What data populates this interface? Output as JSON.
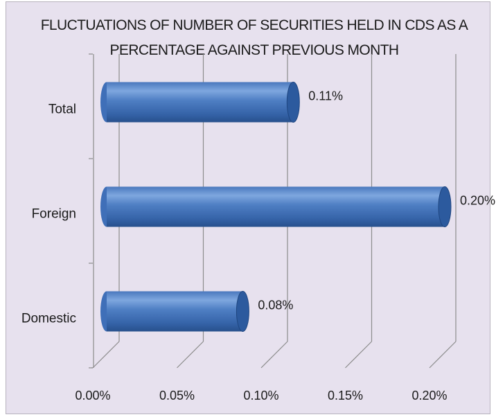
{
  "chart_data": {
    "type": "bar",
    "orientation": "horizontal",
    "style": "3d-cylinder",
    "title": "FLUCTUATIONS OF  NUMBER  OF SECURITIES HELD IN CDS  AS A PERCENTAGE AGAINST PREVIOUS MONTH",
    "title_lines": [
      "FLUCTUATIONS OF  NUMBER  OF SECURITIES HELD IN CDS  AS A",
      "PERCENTAGE AGAINST PREVIOUS MONTH"
    ],
    "categories": [
      "Total",
      "Foreign",
      "Domestic"
    ],
    "values": [
      0.11,
      0.2,
      0.08
    ],
    "value_labels": [
      "0.11%",
      "0.20%",
      "0.08%"
    ],
    "xlim": [
      0,
      0.2
    ],
    "xticks": [
      0,
      0.05,
      0.1,
      0.15,
      0.2
    ],
    "xtick_labels": [
      "0.00%",
      "0.05%",
      "0.10%",
      "0.15%",
      "0.20%"
    ],
    "xlabel": "",
    "ylabel": "",
    "grid": true,
    "legend": "none",
    "colors": {
      "background": "#e7e1ee",
      "bar_light": "#6f9ad6",
      "bar_mid": "#3f6fb8",
      "bar_dark": "#264f8c",
      "cap": "#2c5a9e"
    }
  }
}
